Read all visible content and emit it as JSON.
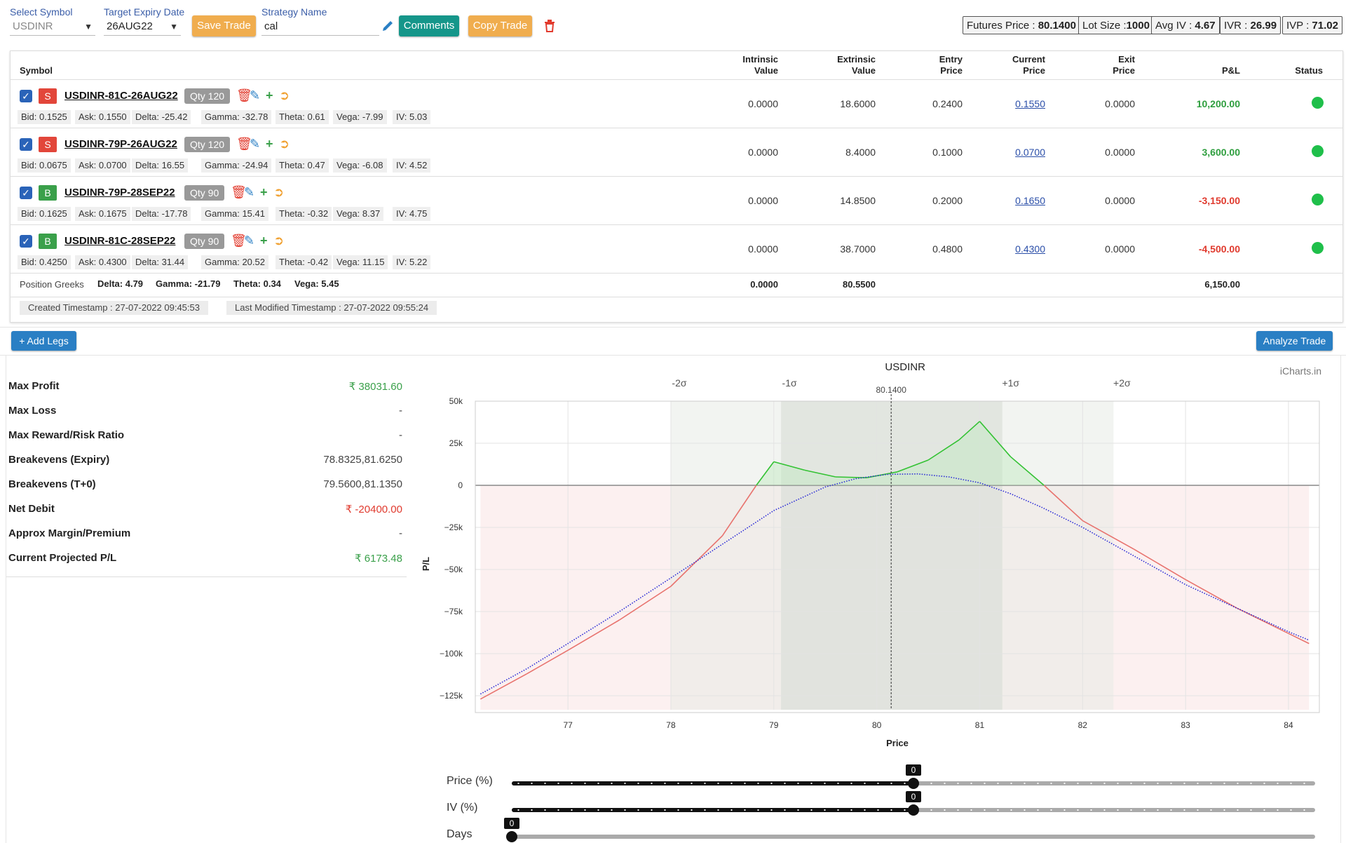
{
  "toolbar": {
    "symbol_label": "Select Symbol",
    "symbol_value": "USDINR",
    "expiry_label": "Target Expiry Date",
    "expiry_value": "26AUG22",
    "save_label": "Save Trade",
    "strategy_label": "Strategy Name",
    "strategy_value": "cal",
    "comments_label": "Comments",
    "copy_label": "Copy Trade"
  },
  "stats": {
    "futures_label": "Futures Price : ",
    "futures_value": "80.1400",
    "lot_label": "Lot Size :",
    "lot_value": "1000",
    "avgiv_label": "Avg IV : ",
    "avgiv_value": "4.67",
    "ivr_label": "IVR : ",
    "ivr_value": "26.99",
    "ivp_label": "IVP : ",
    "ivp_value": "71.02"
  },
  "table": {
    "headers": {
      "symbol": "Symbol",
      "intrinsic1": "Intrinsic",
      "intrinsic2": "Value",
      "extrinsic1": "Extrinsic",
      "extrinsic2": "Value",
      "entry1": "Entry",
      "entry2": "Price",
      "current1": "Current",
      "current2": "Price",
      "exit1": "Exit",
      "exit2": "Price",
      "pnl": "P&L",
      "status": "Status"
    },
    "legs": [
      {
        "side": "S",
        "symbol": "USDINR-81C-26AUG22",
        "qty": "Qty 120",
        "bid": "Bid: 0.1525",
        "ask": "Ask: 0.1550",
        "delta": "Delta: -25.42",
        "gamma": "Gamma: -32.78",
        "theta": "Theta: 0.61",
        "vega": "Vega: -7.99",
        "iv": "IV: 5.03",
        "intrinsic": "0.0000",
        "extrinsic": "18.6000",
        "entry": "0.2400",
        "current": "0.1550",
        "exit": "0.0000",
        "pnl": "10,200.00"
      },
      {
        "side": "S",
        "symbol": "USDINR-79P-26AUG22",
        "qty": "Qty 120",
        "bid": "Bid: 0.0675",
        "ask": "Ask: 0.0700",
        "delta": "Delta: 16.55",
        "gamma": "Gamma: -24.94",
        "theta": "Theta: 0.47",
        "vega": "Vega: -6.08",
        "iv": "IV: 4.52",
        "intrinsic": "0.0000",
        "extrinsic": "8.4000",
        "entry": "0.1000",
        "current": "0.0700",
        "exit": "0.0000",
        "pnl": "3,600.00"
      },
      {
        "side": "B",
        "symbol": "USDINR-79P-28SEP22",
        "qty": "Qty 90",
        "bid": "Bid: 0.1625",
        "ask": "Ask: 0.1675",
        "delta": "Delta: -17.78",
        "gamma": "Gamma: 15.41",
        "theta": "Theta: -0.32",
        "vega": "Vega: 8.37",
        "iv": "IV: 4.75",
        "intrinsic": "0.0000",
        "extrinsic": "14.8500",
        "entry": "0.2000",
        "current": "0.1650",
        "exit": "0.0000",
        "pnl": "-3,150.00"
      },
      {
        "side": "B",
        "symbol": "USDINR-81C-28SEP22",
        "qty": "Qty 90",
        "bid": "Bid: 0.4250",
        "ask": "Ask: 0.4300",
        "delta": "Delta: 31.44",
        "gamma": "Gamma: 20.52",
        "theta": "Theta: -0.42",
        "vega": "Vega: 11.15",
        "iv": "IV: 5.22",
        "intrinsic": "0.0000",
        "extrinsic": "38.7000",
        "entry": "0.4800",
        "current": "0.4300",
        "exit": "0.0000",
        "pnl": "-4,500.00"
      }
    ],
    "position_greeks": {
      "label": "Position Greeks",
      "delta": "Delta: 4.79",
      "gamma": "Gamma: -21.79",
      "theta": "Theta: 0.34",
      "vega": "Vega: 5.45",
      "intrinsic_total": "0.0000",
      "extrinsic_total": "80.5500",
      "pnl_total": "6,150.00"
    },
    "created": "Created Timestamp : 27-07-2022 09:45:53",
    "modified": "Last Modified Timestamp : 27-07-2022 09:55:24"
  },
  "actions": {
    "add_legs": "+ Add Legs",
    "analyze": "Analyze Trade"
  },
  "summary": [
    {
      "label": "Max Profit",
      "value": "₹ 38031.60",
      "tone": "green"
    },
    {
      "label": "Max Loss",
      "value": "-",
      "tone": ""
    },
    {
      "label": "Max Reward/Risk Ratio",
      "value": "-",
      "tone": ""
    },
    {
      "label": "Breakevens (Expiry)",
      "value": "78.8325,81.6250",
      "tone": ""
    },
    {
      "label": "Breakevens (T+0)",
      "value": "79.5600,81.1350",
      "tone": ""
    },
    {
      "label": "Net Debit",
      "value": "₹ -20400.00",
      "tone": "red"
    },
    {
      "label": "Approx Margin/Premium",
      "value": "-",
      "tone": ""
    },
    {
      "label": "Current Projected P/L",
      "value": "₹ 6173.48",
      "tone": "green"
    }
  ],
  "sliders": {
    "price_label": "Price (%)",
    "price_value": "0",
    "price_fraction": 0.5,
    "iv_label": "IV (%)",
    "iv_value": "0",
    "iv_fraction": 0.5,
    "days_label": "Days",
    "days_value": "0",
    "days_fraction": 0
  },
  "colors": {
    "profit_line": "#33c233",
    "loss_line": "#e8736e",
    "t0_line": "#2b2bd6",
    "accent": "#2a7fc4"
  },
  "chart_data": {
    "type": "line",
    "title": "USDINR",
    "watermark": "iCharts.in",
    "xlabel": "Price",
    "ylabel": "P/L",
    "xlim": [
      76.1,
      84.3
    ],
    "ylim": [
      -135000,
      50000
    ],
    "xticks": [
      77,
      78,
      79,
      80,
      81,
      82,
      83,
      84
    ],
    "yticks": [
      50000,
      25000,
      0,
      -25000,
      -50000,
      -75000,
      -100000,
      -125000
    ],
    "ytick_labels": [
      "50k",
      "25k",
      "0",
      "−25k",
      "−50k",
      "−75k",
      "−100k",
      "−125k"
    ],
    "spot": 80.14,
    "spot_label": "80.1400",
    "sigma_bands": [
      {
        "label": "-2σ",
        "x": 78.0
      },
      {
        "label": "-1σ",
        "x": 79.07
      },
      {
        "label": "+1σ",
        "x": 81.22
      },
      {
        "label": "+2σ",
        "x": 82.3
      }
    ],
    "series": [
      {
        "name": "Expiry P/L",
        "x": [
          76.15,
          76.6,
          77.0,
          77.5,
          78.0,
          78.5,
          78.83,
          79.0,
          79.3,
          79.6,
          79.9,
          80.2,
          80.5,
          80.8,
          81.0,
          81.3,
          81.625,
          82.0,
          82.5,
          83.0,
          83.5,
          84.0,
          84.2
        ],
        "y": [
          -127000,
          -112000,
          -98000,
          -80000,
          -60000,
          -30000,
          0,
          14000,
          9000,
          5000,
          4500,
          8000,
          15000,
          27000,
          38000,
          17000,
          0,
          -21000,
          -38000,
          -56000,
          -73000,
          -88000,
          -94000
        ]
      },
      {
        "name": "T+0 P/L",
        "x": [
          76.15,
          76.6,
          77.0,
          77.5,
          78.0,
          78.5,
          79.0,
          79.5,
          79.8,
          80.1,
          80.4,
          80.7,
          81.0,
          81.3,
          81.6,
          82.0,
          82.5,
          83.0,
          83.5,
          84.0,
          84.2
        ],
        "y": [
          -124000,
          -109000,
          -94000,
          -75000,
          -55000,
          -35000,
          -15000,
          -1000,
          4000,
          6500,
          6800,
          5000,
          1500,
          -5000,
          -13000,
          -25000,
          -42000,
          -59000,
          -73000,
          -87000,
          -92000
        ]
      }
    ]
  }
}
